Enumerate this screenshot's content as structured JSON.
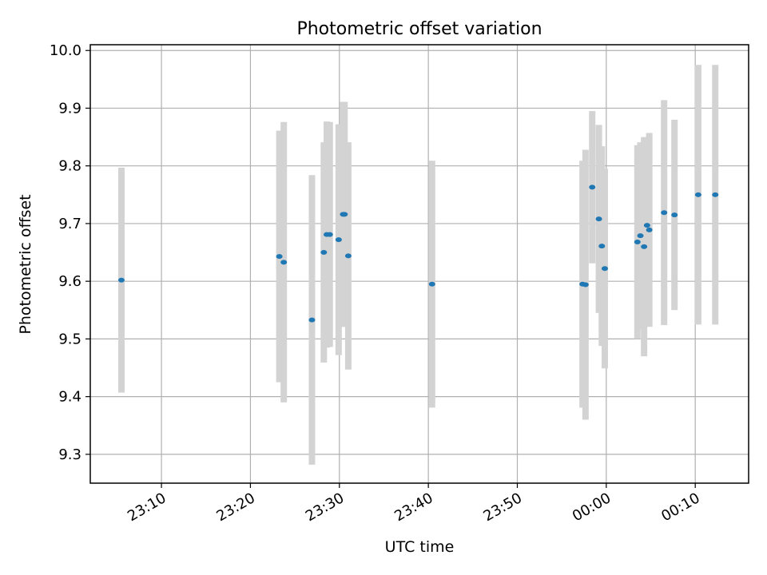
{
  "chart_data": {
    "type": "scatter",
    "title": "Photometric offset variation",
    "xlabel": "UTC time",
    "ylabel": "Photometric offset",
    "x_ticks": [
      "23:10",
      "23:20",
      "23:30",
      "23:40",
      "23:50",
      "00:00",
      "00:10"
    ],
    "y_ticks": [
      "9.3",
      "9.4",
      "9.5",
      "9.6",
      "9.7",
      "9.8",
      "9.9",
      "10.0"
    ],
    "xlim": [
      "23:02:00",
      "00:16:00"
    ],
    "ylim": [
      9.25,
      10.01
    ],
    "grid": true,
    "marker_color": "#1f77b4",
    "errorbar_color": "#d3d3d3",
    "points": [
      {
        "time": "23:05:30",
        "value": 9.602,
        "err": 0.195
      },
      {
        "time": "23:23:15",
        "value": 9.643,
        "err": 0.218
      },
      {
        "time": "23:23:45",
        "value": 9.633,
        "err": 0.243
      },
      {
        "time": "23:26:55",
        "value": 9.533,
        "err": 0.251
      },
      {
        "time": "23:28:15",
        "value": 9.65,
        "err": 0.191
      },
      {
        "time": "23:28:35",
        "value": 9.681,
        "err": 0.196
      },
      {
        "time": "23:28:55",
        "value": 9.681,
        "err": 0.195
      },
      {
        "time": "23:29:55",
        "value": 9.672,
        "err": 0.2
      },
      {
        "time": "23:30:25",
        "value": 9.716,
        "err": 0.195
      },
      {
        "time": "23:30:35",
        "value": 9.716,
        "err": 0.195
      },
      {
        "time": "23:31:00",
        "value": 9.644,
        "err": 0.197
      },
      {
        "time": "23:40:25",
        "value": 9.595,
        "err": 0.214
      },
      {
        "time": "23:57:20",
        "value": 9.595,
        "err": 0.214
      },
      {
        "time": "23:57:40",
        "value": 9.594,
        "err": 0.234
      },
      {
        "time": "23:58:25",
        "value": 9.763,
        "err": 0.132
      },
      {
        "time": "23:59:10",
        "value": 9.708,
        "err": 0.163
      },
      {
        "time": "23:59:30",
        "value": 9.661,
        "err": 0.173
      },
      {
        "time": "23:59:50",
        "value": 9.622,
        "err": 0.173
      },
      {
        "time": "00:03:30",
        "value": 9.668,
        "err": 0.168
      },
      {
        "time": "00:03:50",
        "value": 9.679,
        "err": 0.162
      },
      {
        "time": "00:04:15",
        "value": 9.66,
        "err": 0.19
      },
      {
        "time": "00:04:35",
        "value": 9.697,
        "err": 0.153
      },
      {
        "time": "00:04:50",
        "value": 9.689,
        "err": 0.168
      },
      {
        "time": "00:06:30",
        "value": 9.719,
        "err": 0.195
      },
      {
        "time": "00:07:40",
        "value": 9.715,
        "err": 0.165
      },
      {
        "time": "00:10:20",
        "value": 9.75,
        "err": 0.225
      },
      {
        "time": "00:12:15",
        "value": 9.75,
        "err": 0.225
      }
    ]
  }
}
